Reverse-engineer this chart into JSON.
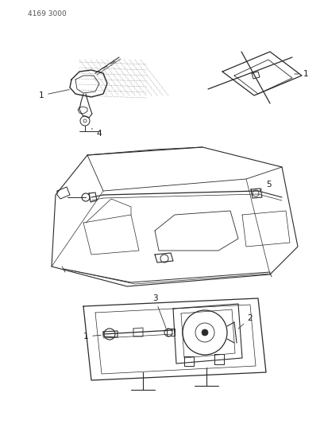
{
  "part_number": "4169 3000",
  "bg_color": "#ffffff",
  "line_color": "#2a2a2a",
  "figsize": [
    4.08,
    5.33
  ],
  "dpi": 100
}
